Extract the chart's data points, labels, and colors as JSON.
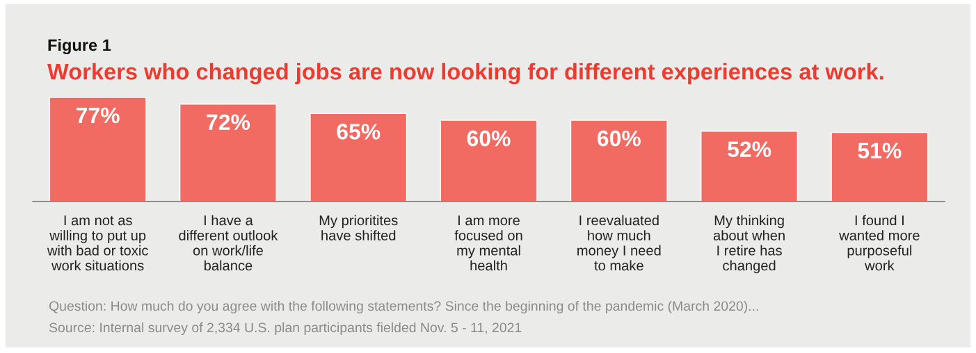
{
  "chart_data": {
    "type": "bar",
    "title": "Figure 1",
    "subtitle": "Workers who changed jobs are now looking for different experiences at work.",
    "categories": [
      "I am not as\nwilling to put up\nwith bad or toxic\nwork situations",
      "I have a\ndifferent outlook\non work/life\nbalance",
      "My prioritites\nhave shifted",
      "I am more\nfocused on\nmy mental\nhealth",
      "I reevaluated\nhow much\nmoney I need\nto make",
      "My thinking\nabout when\nI retire has\nchanged",
      "I found I\nwanted more\npurposeful\nwork"
    ],
    "values": [
      77,
      72,
      65,
      60,
      60,
      52,
      51
    ],
    "value_labels": [
      "77%",
      "72%",
      "65%",
      "60%",
      "60%",
      "52%",
      "51%"
    ],
    "color": "#f26b63",
    "grid": false,
    "legend": false,
    "tick_labels": "x",
    "annotations": [
      "Question: How much do you agree with the following statements? Since the beginning of the pandemic (March 2020)...",
      "Source: Internal survey of 2,334 U.S. plan participants fielded Nov. 5 - 11, 2021"
    ]
  }
}
